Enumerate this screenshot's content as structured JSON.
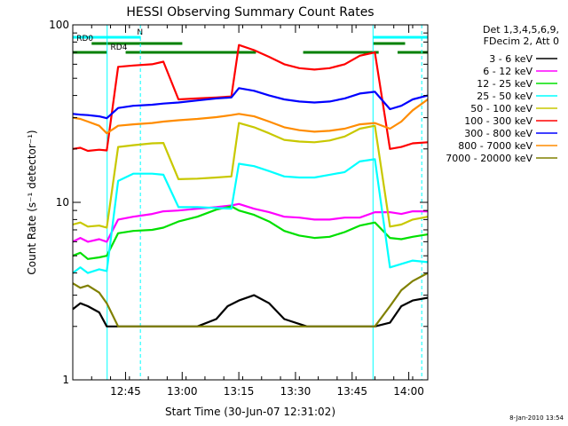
{
  "chart_data": {
    "type": "line",
    "title": "HESSI Observing Summary Count Rates",
    "xlabel": "Start Time (30-Jun-07 12:31:02)",
    "ylabel": "Count Rate (s⁻¹ detector⁻¹)",
    "yscale": "log",
    "ylim": [
      1,
      100
    ],
    "xlim_minutes_after_start": [
      0,
      94
    ],
    "x_ticks": [
      {
        "label": "12:45",
        "minute": 13.97
      },
      {
        "label": "13:00",
        "minute": 28.97
      },
      {
        "label": "13:15",
        "minute": 43.97
      },
      {
        "label": "13:30",
        "minute": 58.97
      },
      {
        "label": "13:45",
        "minute": 73.97
      },
      {
        "label": "14:00",
        "minute": 88.97
      }
    ],
    "y_ticks": [
      {
        "label": "1",
        "value": 1
      },
      {
        "label": "10",
        "value": 10
      },
      {
        "label": "100",
        "value": 100
      }
    ],
    "legend_header": [
      "Det 1,3,4,5,6,9,",
      "FDecim 2, Att 0"
    ],
    "legend_position": "right",
    "series": [
      {
        "name": "3 - 6 keV",
        "color": "#000000",
        "points": [
          [
            0,
            2.5
          ],
          [
            2,
            2.7
          ],
          [
            4,
            2.6
          ],
          [
            7,
            2.4
          ],
          [
            9,
            2.0
          ],
          [
            13,
            2.0
          ],
          [
            20,
            2.0
          ],
          [
            27,
            2.0
          ],
          [
            33,
            2.0
          ],
          [
            38,
            2.2
          ],
          [
            41,
            2.6
          ],
          [
            44,
            2.8
          ],
          [
            48,
            3.0
          ],
          [
            52,
            2.7
          ],
          [
            56,
            2.2
          ],
          [
            62,
            2.0
          ],
          [
            68,
            2.0
          ],
          [
            75,
            2.0
          ],
          [
            80,
            2.0
          ],
          [
            84,
            2.1
          ],
          [
            87,
            2.6
          ],
          [
            90,
            2.8
          ],
          [
            94,
            2.9
          ]
        ]
      },
      {
        "name": "6 - 12 keV",
        "color": "#ff00ff",
        "points": [
          [
            0,
            6.0
          ],
          [
            2,
            6.3
          ],
          [
            4,
            6.0
          ],
          [
            7,
            6.2
          ],
          [
            9,
            6.0
          ],
          [
            12,
            8.0
          ],
          [
            16,
            8.3
          ],
          [
            21,
            8.6
          ],
          [
            24,
            8.9
          ],
          [
            28,
            9.0
          ],
          [
            33,
            9.2
          ],
          [
            38,
            9.4
          ],
          [
            42,
            9.6
          ],
          [
            44,
            9.8
          ],
          [
            48,
            9.2
          ],
          [
            52,
            8.8
          ],
          [
            56,
            8.3
          ],
          [
            60,
            8.2
          ],
          [
            64,
            8.0
          ],
          [
            68,
            8.0
          ],
          [
            72,
            8.2
          ],
          [
            76,
            8.2
          ],
          [
            80,
            8.8
          ],
          [
            84,
            8.8
          ],
          [
            87,
            8.6
          ],
          [
            90,
            8.9
          ],
          [
            94,
            8.9
          ]
        ]
      },
      {
        "name": "12 - 25 keV",
        "color": "#00e000",
        "points": [
          [
            0,
            5.0
          ],
          [
            2,
            5.2
          ],
          [
            4,
            4.8
          ],
          [
            7,
            4.9
          ],
          [
            9,
            5.0
          ],
          [
            12,
            6.7
          ],
          [
            16,
            6.9
          ],
          [
            21,
            7.0
          ],
          [
            24,
            7.2
          ],
          [
            28,
            7.8
          ],
          [
            33,
            8.3
          ],
          [
            38,
            9.1
          ],
          [
            42,
            9.5
          ],
          [
            44,
            9.0
          ],
          [
            48,
            8.5
          ],
          [
            52,
            7.8
          ],
          [
            56,
            6.9
          ],
          [
            60,
            6.5
          ],
          [
            64,
            6.3
          ],
          [
            68,
            6.4
          ],
          [
            72,
            6.8
          ],
          [
            76,
            7.4
          ],
          [
            80,
            7.7
          ],
          [
            84,
            6.3
          ],
          [
            87,
            6.2
          ],
          [
            90,
            6.4
          ],
          [
            94,
            6.6
          ]
        ]
      },
      {
        "name": "25 - 50 keV",
        "color": "#00ffff",
        "points": [
          [
            0,
            4.0
          ],
          [
            2,
            4.3
          ],
          [
            4,
            4.0
          ],
          [
            7,
            4.2
          ],
          [
            9,
            4.1
          ],
          [
            12,
            13.2
          ],
          [
            16,
            14.5
          ],
          [
            21,
            14.5
          ],
          [
            24,
            14.3
          ],
          [
            28,
            9.4
          ],
          [
            33,
            9.4
          ],
          [
            38,
            9.3
          ],
          [
            42,
            9.2
          ],
          [
            44,
            16.5
          ],
          [
            48,
            16.0
          ],
          [
            52,
            15.0
          ],
          [
            56,
            14.0
          ],
          [
            60,
            13.8
          ],
          [
            64,
            13.8
          ],
          [
            68,
            14.3
          ],
          [
            72,
            14.8
          ],
          [
            76,
            17.0
          ],
          [
            80,
            17.5
          ],
          [
            84,
            4.3
          ],
          [
            87,
            4.5
          ],
          [
            90,
            4.7
          ],
          [
            94,
            4.6
          ]
        ]
      },
      {
        "name": "50 - 100 keV",
        "color": "#c8c800",
        "points": [
          [
            0,
            7.5
          ],
          [
            2,
            7.7
          ],
          [
            4,
            7.3
          ],
          [
            7,
            7.4
          ],
          [
            9,
            7.2
          ],
          [
            12,
            20.5
          ],
          [
            16,
            21.0
          ],
          [
            21,
            21.5
          ],
          [
            24,
            21.6
          ],
          [
            28,
            13.5
          ],
          [
            33,
            13.6
          ],
          [
            38,
            13.8
          ],
          [
            42,
            14.0
          ],
          [
            44,
            28.0
          ],
          [
            48,
            26.5
          ],
          [
            52,
            24.5
          ],
          [
            56,
            22.5
          ],
          [
            60,
            22.0
          ],
          [
            64,
            21.8
          ],
          [
            68,
            22.3
          ],
          [
            72,
            23.5
          ],
          [
            76,
            26.0
          ],
          [
            80,
            27.0
          ],
          [
            84,
            7.3
          ],
          [
            87,
            7.5
          ],
          [
            90,
            8.0
          ],
          [
            94,
            8.3
          ]
        ]
      },
      {
        "name": "100 - 300 keV",
        "color": "#ff0000",
        "points": [
          [
            0,
            20.0
          ],
          [
            2,
            20.3
          ],
          [
            4,
            19.5
          ],
          [
            7,
            19.8
          ],
          [
            9,
            19.6
          ],
          [
            12,
            58.0
          ],
          [
            16,
            59.0
          ],
          [
            21,
            60.0
          ],
          [
            24,
            62.0
          ],
          [
            28,
            38.0
          ],
          [
            33,
            38.5
          ],
          [
            38,
            39.0
          ],
          [
            42,
            39.5
          ],
          [
            44,
            77.0
          ],
          [
            48,
            72.0
          ],
          [
            52,
            66.0
          ],
          [
            56,
            60.0
          ],
          [
            60,
            57.0
          ],
          [
            64,
            56.0
          ],
          [
            68,
            57.0
          ],
          [
            72,
            60.0
          ],
          [
            76,
            67.0
          ],
          [
            80,
            70.0
          ],
          [
            84,
            20.0
          ],
          [
            87,
            20.5
          ],
          [
            90,
            21.5
          ],
          [
            94,
            21.8
          ]
        ]
      },
      {
        "name": "300 - 800 keV",
        "color": "#0000ff",
        "points": [
          [
            0,
            31.5
          ],
          [
            2,
            31.2
          ],
          [
            4,
            31.0
          ],
          [
            7,
            30.5
          ],
          [
            9,
            29.8
          ],
          [
            12,
            34.0
          ],
          [
            16,
            35.0
          ],
          [
            21,
            35.5
          ],
          [
            24,
            36.0
          ],
          [
            28,
            36.5
          ],
          [
            33,
            37.5
          ],
          [
            38,
            38.5
          ],
          [
            42,
            39.0
          ],
          [
            44,
            44.0
          ],
          [
            48,
            42.5
          ],
          [
            52,
            40.0
          ],
          [
            56,
            38.0
          ],
          [
            60,
            37.0
          ],
          [
            64,
            36.5
          ],
          [
            68,
            37.0
          ],
          [
            72,
            38.5
          ],
          [
            76,
            41.0
          ],
          [
            80,
            42.0
          ],
          [
            84,
            33.5
          ],
          [
            87,
            35.0
          ],
          [
            90,
            38.0
          ],
          [
            94,
            40.0
          ]
        ]
      },
      {
        "name": "800 - 7000 keV",
        "color": "#ff8c00",
        "points": [
          [
            0,
            30.0
          ],
          [
            2,
            29.5
          ],
          [
            4,
            28.5
          ],
          [
            7,
            27.0
          ],
          [
            9,
            24.5
          ],
          [
            12,
            27.0
          ],
          [
            16,
            27.5
          ],
          [
            21,
            28.0
          ],
          [
            24,
            28.5
          ],
          [
            28,
            29.0
          ],
          [
            33,
            29.5
          ],
          [
            38,
            30.2
          ],
          [
            42,
            31.0
          ],
          [
            44,
            31.5
          ],
          [
            48,
            30.5
          ],
          [
            52,
            28.5
          ],
          [
            56,
            26.5
          ],
          [
            60,
            25.5
          ],
          [
            64,
            25.0
          ],
          [
            68,
            25.3
          ],
          [
            72,
            26.0
          ],
          [
            76,
            27.5
          ],
          [
            80,
            28.0
          ],
          [
            84,
            26.0
          ],
          [
            87,
            28.5
          ],
          [
            90,
            33.0
          ],
          [
            94,
            38.0
          ]
        ]
      },
      {
        "name": "7000 - 20000 keV",
        "color": "#808000",
        "points": [
          [
            0,
            3.5
          ],
          [
            2,
            3.3
          ],
          [
            4,
            3.4
          ],
          [
            7,
            3.1
          ],
          [
            9,
            2.7
          ],
          [
            12,
            2.0
          ],
          [
            16,
            2.0
          ],
          [
            21,
            2.0
          ],
          [
            24,
            2.0
          ],
          [
            28,
            2.0
          ],
          [
            33,
            2.0
          ],
          [
            38,
            2.0
          ],
          [
            42,
            2.0
          ],
          [
            44,
            2.0
          ],
          [
            48,
            2.0
          ],
          [
            52,
            2.0
          ],
          [
            56,
            2.0
          ],
          [
            60,
            2.0
          ],
          [
            64,
            2.0
          ],
          [
            68,
            2.0
          ],
          [
            72,
            2.0
          ],
          [
            76,
            2.0
          ],
          [
            80,
            2.0
          ],
          [
            84,
            2.6
          ],
          [
            87,
            3.2
          ],
          [
            90,
            3.6
          ],
          [
            94,
            4.0
          ]
        ]
      }
    ],
    "flag_bars": [
      {
        "name": "N",
        "color": "#00ffff",
        "row": 1,
        "segments": [
          [
            0,
            18
          ],
          [
            79.5,
            94
          ]
        ]
      },
      {
        "name": "RD0",
        "color": "#008000",
        "row": 2,
        "segments": [
          [
            5,
            29
          ],
          [
            79.5,
            88
          ]
        ]
      },
      {
        "name": "RD4",
        "color": "#008000",
        "row": 3,
        "segments": [
          [
            0,
            9
          ],
          [
            14,
            48.5
          ],
          [
            61,
            81
          ],
          [
            86,
            94
          ]
        ]
      }
    ],
    "vertical_markers": [
      {
        "minute": 9.1,
        "style": "solid",
        "color": "#00ffff"
      },
      {
        "minute": 17.9,
        "style": "dashed",
        "color": "#00ffff"
      },
      {
        "minute": 79.5,
        "style": "solid",
        "color": "#00ffff"
      },
      {
        "minute": 92.4,
        "style": "dashed",
        "color": "#00ffff"
      }
    ]
  },
  "footer": {
    "timestamp": "8-Jan-2010 13:54"
  }
}
